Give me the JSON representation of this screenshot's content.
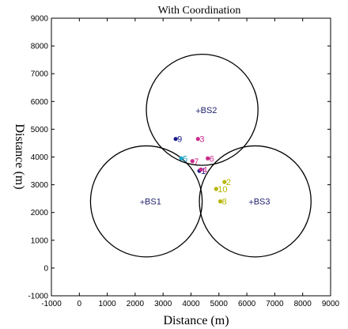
{
  "chart_data": {
    "type": "scatter",
    "title": "With Coordination",
    "xlabel": "Distance (m)",
    "ylabel": "Distance (m)",
    "xlim": [
      -1000,
      9000
    ],
    "ylim": [
      -1000,
      9000
    ],
    "xticks": [
      -1000,
      0,
      1000,
      2000,
      3000,
      4000,
      5000,
      6000,
      7000,
      8000,
      9000
    ],
    "yticks": [
      -1000,
      0,
      1000,
      2000,
      3000,
      4000,
      5000,
      6000,
      7000,
      8000,
      9000
    ],
    "grid": false,
    "cell_radius": 2000,
    "base_stations": [
      {
        "label": "BS1",
        "x": 2400,
        "y": 2400,
        "color": "#1f1f6e"
      },
      {
        "label": "BS2",
        "x": 4400,
        "y": 5700,
        "color": "#1f1f6e"
      },
      {
        "label": "BS3",
        "x": 6300,
        "y": 2400,
        "color": "#1f1f6e"
      }
    ],
    "users": [
      {
        "label": "1",
        "x": 4300,
        "y": 3500,
        "color": "#1a1a8c"
      },
      {
        "label": "2",
        "x": 5200,
        "y": 3100,
        "color": "#b5b500"
      },
      {
        "label": "3",
        "x": 4250,
        "y": 4650,
        "color": "#cc2a8c"
      },
      {
        "label": "4",
        "x": 4350,
        "y": 3550,
        "color": "#cc2a8c"
      },
      {
        "label": "5",
        "x": 3650,
        "y": 3950,
        "color": "#1aa3c4"
      },
      {
        "label": "6",
        "x": 4600,
        "y": 3950,
        "color": "#cc2a8c"
      },
      {
        "label": "7",
        "x": 4050,
        "y": 3850,
        "color": "#cc2a8c"
      },
      {
        "label": "8",
        "x": 5050,
        "y": 2400,
        "color": "#b5b500"
      },
      {
        "label": "9",
        "x": 3450,
        "y": 4650,
        "color": "#1a1a8c"
      },
      {
        "label": "10",
        "x": 4900,
        "y": 2850,
        "color": "#b5b500"
      }
    ]
  }
}
